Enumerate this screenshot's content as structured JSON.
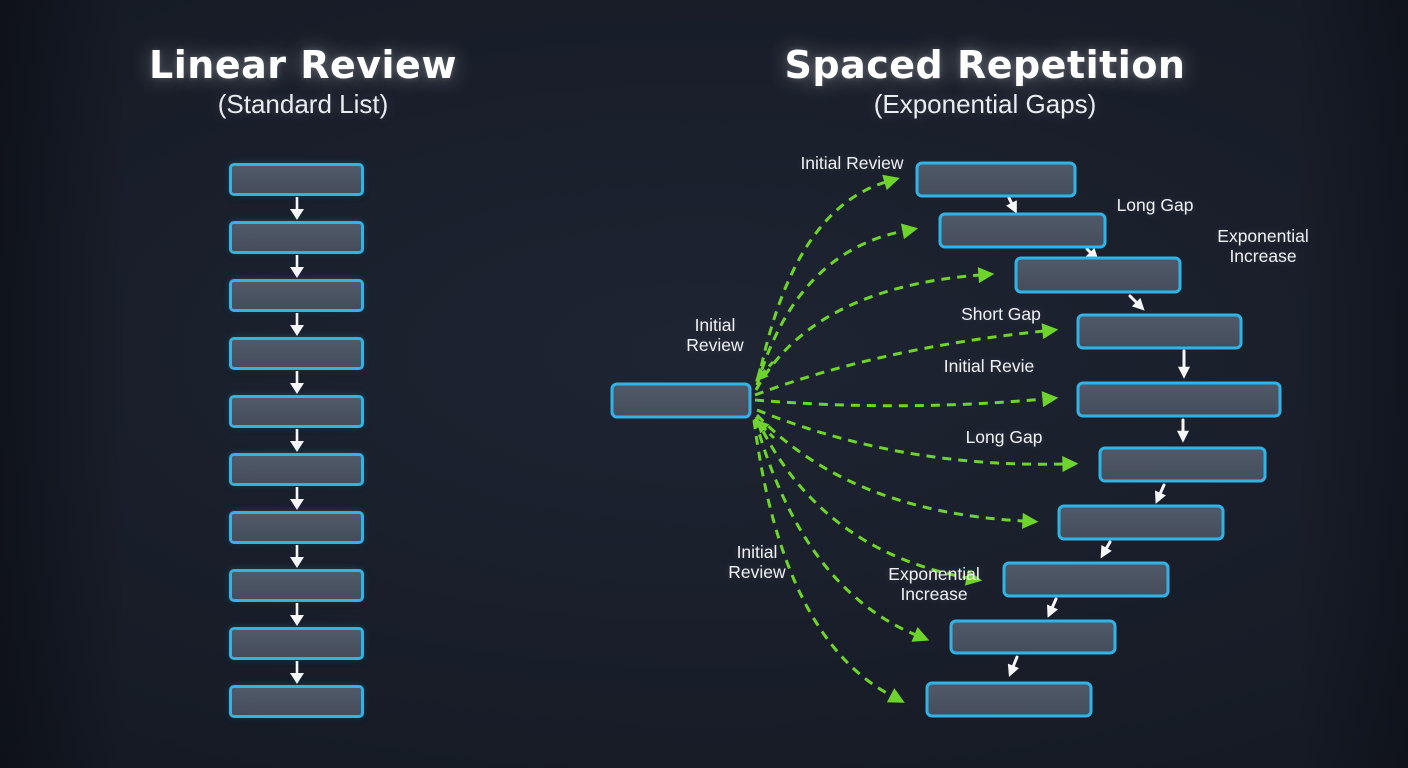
{
  "palette": {
    "background": "#171c27",
    "box_fill": "#4a5363",
    "box_border_cyan": "#2fb4e8",
    "arrow_green": "#6ed42c",
    "arrow_white": "#f4f6f7",
    "text_color": "#eef1f4"
  },
  "left_panel": {
    "title": "Linear Review",
    "subtitle": "(Standard List)",
    "box_count": 10
  },
  "right_panel": {
    "title": "Spaced Repetition",
    "subtitle": "(Exponential Gaps)",
    "source_box_count": 1,
    "target_box_count": 10,
    "labels": {
      "initial_review_top": "Initial Review",
      "long_gap_top": "Long Gap",
      "exponential_increase_top": "Exponential Increase",
      "short_gap": "Short Gap",
      "initial_revie": "Initial Revie",
      "long_gap_mid": "Long Gap",
      "initial_review_mid": "Initial Review",
      "initial_review_bottom": "Initial Review",
      "exponential_increase_bottom": "Exponential Increase"
    }
  }
}
